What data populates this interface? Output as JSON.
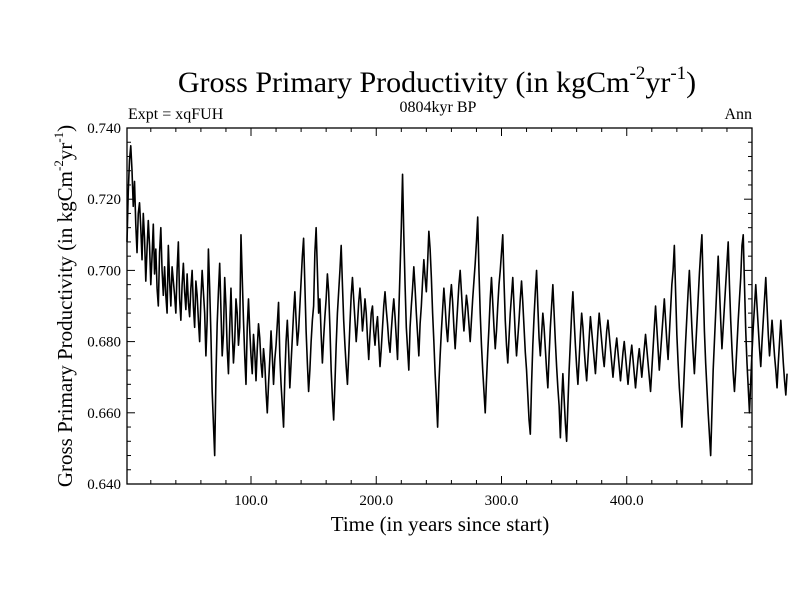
{
  "chart_data": {
    "type": "line",
    "title": {
      "main": "Gross Primary Productivity (in kgCm",
      "sup1": "-2",
      "mid": "yr",
      "sup2": "-1",
      "end": ")"
    },
    "left_label": "Expt = xqFUH",
    "center_label": "0804kyr BP",
    "right_label": "Ann",
    "xlabel": "Time (in years since start)",
    "ylabel": {
      "main": "Gross Primary Productivity (in kgCm",
      "sup1": "-2",
      "mid": "yr",
      "sup2": "-1",
      "end": ")"
    },
    "xlim": [
      1,
      500
    ],
    "ylim": [
      0.64,
      0.74
    ],
    "x_ticks": [
      100,
      200,
      300,
      400
    ],
    "x_tick_labels": [
      "100.0",
      "200.0",
      "300.0",
      "400.0"
    ],
    "y_ticks": [
      0.64,
      0.66,
      0.68,
      0.7,
      0.72,
      0.74
    ],
    "y_tick_labels": [
      "0.640",
      "0.660",
      "0.680",
      "0.700",
      "0.720",
      "0.740"
    ],
    "series": [
      {
        "name": "GPP",
        "x_start": 1,
        "x_step": 1,
        "values": [
          0.708,
          0.722,
          0.731,
          0.735,
          0.728,
          0.718,
          0.725,
          0.713,
          0.705,
          0.716,
          0.719,
          0.712,
          0.703,
          0.716,
          0.709,
          0.697,
          0.706,
          0.714,
          0.707,
          0.696,
          0.704,
          0.713,
          0.699,
          0.706,
          0.695,
          0.69,
          0.705,
          0.712,
          0.7,
          0.693,
          0.701,
          0.693,
          0.688,
          0.707,
          0.697,
          0.69,
          0.701,
          0.697,
          0.693,
          0.688,
          0.7,
          0.708,
          0.692,
          0.686,
          0.696,
          0.702,
          0.694,
          0.689,
          0.699,
          0.691,
          0.687,
          0.695,
          0.7,
          0.69,
          0.684,
          0.697,
          0.693,
          0.686,
          0.68,
          0.692,
          0.7,
          0.694,
          0.688,
          0.676,
          0.686,
          0.706,
          0.695,
          0.682,
          0.666,
          0.657,
          0.648,
          0.67,
          0.685,
          0.694,
          0.702,
          0.689,
          0.676,
          0.682,
          0.698,
          0.69,
          0.678,
          0.671,
          0.684,
          0.695,
          0.683,
          0.674,
          0.68,
          0.692,
          0.688,
          0.679,
          0.684,
          0.71,
          0.698,
          0.686,
          0.676,
          0.668,
          0.684,
          0.692,
          0.683,
          0.676,
          0.671,
          0.682,
          0.677,
          0.669,
          0.678,
          0.685,
          0.681,
          0.674,
          0.67,
          0.678,
          0.674,
          0.666,
          0.66,
          0.668,
          0.675,
          0.683,
          0.676,
          0.668,
          0.675,
          0.679,
          0.685,
          0.691,
          0.676,
          0.668,
          0.662,
          0.656,
          0.67,
          0.68,
          0.686,
          0.678,
          0.667,
          0.674,
          0.681,
          0.688,
          0.694,
          0.686,
          0.679,
          0.683,
          0.69,
          0.697,
          0.704,
          0.709,
          0.696,
          0.683,
          0.674,
          0.666,
          0.672,
          0.68,
          0.686,
          0.69,
          0.705,
          0.712,
          0.7,
          0.688,
          0.692,
          0.682,
          0.674,
          0.681,
          0.687,
          0.692,
          0.699,
          0.694,
          0.684,
          0.672,
          0.664,
          0.658,
          0.668,
          0.679,
          0.688,
          0.694,
          0.7,
          0.707,
          0.696,
          0.686,
          0.679,
          0.673,
          0.668,
          0.676,
          0.685,
          0.693,
          0.698,
          0.692,
          0.686,
          0.68,
          0.685,
          0.691,
          0.695,
          0.69,
          0.683,
          0.687,
          0.692,
          0.688,
          0.681,
          0.675,
          0.682,
          0.688,
          0.69,
          0.683,
          0.679,
          0.684,
          0.687,
          0.68,
          0.673,
          0.678,
          0.684,
          0.69,
          0.694,
          0.689,
          0.685,
          0.68,
          0.677,
          0.683,
          0.688,
          0.692,
          0.687,
          0.681,
          0.675,
          0.688,
          0.7,
          0.712,
          0.727,
          0.71,
          0.696,
          0.684,
          0.678,
          0.672,
          0.684,
          0.69,
          0.695,
          0.701,
          0.695,
          0.688,
          0.682,
          0.676,
          0.685,
          0.69,
          0.697,
          0.703,
          0.698,
          0.694,
          0.702,
          0.711,
          0.706,
          0.698,
          0.688,
          0.68,
          0.671,
          0.664,
          0.656,
          0.668,
          0.676,
          0.683,
          0.689,
          0.695,
          0.69,
          0.684,
          0.68,
          0.686,
          0.692,
          0.696,
          0.691,
          0.684,
          0.678,
          0.684,
          0.69,
          0.696,
          0.7,
          0.694,
          0.688,
          0.683,
          0.688,
          0.693,
          0.69,
          0.685,
          0.68,
          0.686,
          0.692,
          0.697,
          0.702,
          0.708,
          0.715,
          0.7,
          0.688,
          0.679,
          0.672,
          0.666,
          0.66,
          0.669,
          0.677,
          0.684,
          0.692,
          0.698,
          0.691,
          0.684,
          0.678,
          0.683,
          0.69,
          0.696,
          0.7,
          0.705,
          0.71,
          0.697,
          0.686,
          0.679,
          0.674,
          0.681,
          0.688,
          0.693,
          0.698,
          0.69,
          0.682,
          0.676,
          0.681,
          0.686,
          0.692,
          0.697,
          0.691,
          0.684,
          0.677,
          0.672,
          0.665,
          0.658,
          0.654,
          0.668,
          0.679,
          0.687,
          0.694,
          0.7,
          0.69,
          0.681,
          0.676,
          0.682,
          0.688,
          0.684,
          0.678,
          0.672,
          0.667,
          0.676,
          0.684,
          0.69,
          0.696,
          0.688,
          0.68,
          0.673,
          0.667,
          0.662,
          0.653,
          0.663,
          0.671,
          0.664,
          0.657,
          0.652,
          0.662,
          0.672,
          0.68,
          0.688,
          0.694,
          0.686,
          0.679,
          0.673,
          0.668,
          0.675,
          0.682,
          0.688,
          0.684,
          0.678,
          0.673,
          0.669,
          0.675,
          0.681,
          0.687,
          0.683,
          0.679,
          0.675,
          0.671,
          0.677,
          0.683,
          0.688,
          0.684,
          0.68,
          0.676,
          0.673,
          0.678,
          0.683,
          0.686,
          0.682,
          0.678,
          0.674,
          0.67,
          0.674,
          0.678,
          0.681,
          0.677,
          0.673,
          0.669,
          0.673,
          0.677,
          0.68,
          0.676,
          0.672,
          0.668,
          0.672,
          0.676,
          0.679,
          0.675,
          0.671,
          0.667,
          0.671,
          0.675,
          0.678,
          0.674,
          0.67,
          0.674,
          0.678,
          0.682,
          0.678,
          0.674,
          0.67,
          0.666,
          0.672,
          0.678,
          0.684,
          0.69,
          0.684,
          0.678,
          0.672,
          0.677,
          0.682,
          0.687,
          0.692,
          0.686,
          0.68,
          0.675,
          0.682,
          0.689,
          0.696,
          0.7,
          0.707,
          0.694,
          0.682,
          0.674,
          0.667,
          0.662,
          0.656,
          0.664,
          0.672,
          0.68,
          0.687,
          0.694,
          0.7,
          0.692,
          0.684,
          0.677,
          0.671,
          0.678,
          0.685,
          0.692,
          0.699,
          0.705,
          0.71,
          0.696,
          0.683,
          0.674,
          0.667,
          0.66,
          0.654,
          0.648,
          0.66,
          0.672,
          0.68,
          0.688,
          0.696,
          0.704,
          0.695,
          0.686,
          0.678,
          0.684,
          0.69,
          0.696,
          0.702,
          0.708,
          0.696,
          0.686,
          0.678,
          0.671,
          0.666,
          0.672,
          0.679,
          0.686,
          0.692,
          0.698,
          0.707,
          0.71,
          0.696,
          0.683,
          0.674,
          0.667,
          0.66,
          0.669,
          0.677,
          0.684,
          0.69,
          0.696,
          0.69,
          0.684,
          0.678,
          0.673,
          0.68,
          0.686,
          0.692,
          0.698,
          0.69,
          0.682,
          0.676,
          0.681,
          0.686,
          0.681,
          0.676,
          0.672,
          0.667,
          0.674,
          0.68,
          0.686,
          0.68,
          0.674,
          0.669,
          0.665,
          0.671
        ]
      }
    ]
  }
}
